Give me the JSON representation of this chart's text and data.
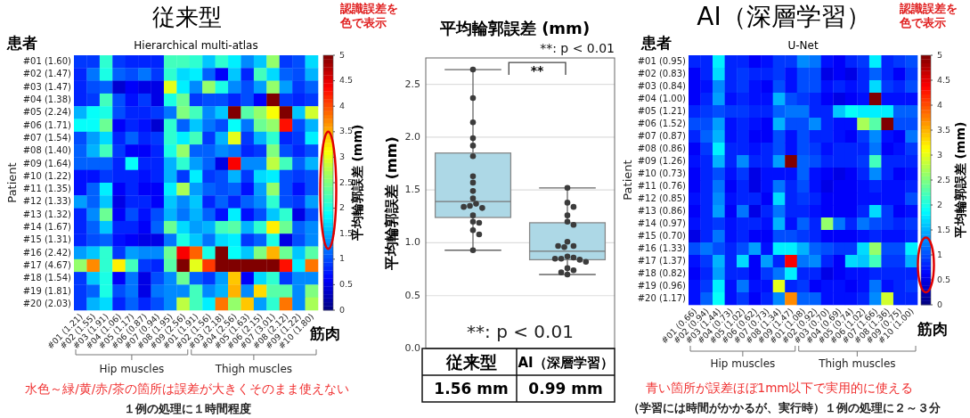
{
  "chart_data": [
    {
      "type": "heatmap",
      "title": "従来型",
      "subtitle": "Hierarchical multi-atlas",
      "ylabel": "Patient",
      "xlabel": "筋肉",
      "clabel": "平均輪郭誤差 (mm)",
      "categories": [
        "#01 (1.21)",
        "#02 (1.55)",
        "#03 (1.91)",
        "#04 (1.06)",
        "#05 (1.17)",
        "#06 (0.87)",
        "#07 (0.94)",
        "#08 (1.95)",
        "#09 (2.56)",
        "#01 (1.91)",
        "#02 (1.56)",
        "#03 (2.18)",
        "#04 (2.56)",
        "#05 (1.63)",
        "#06 (2.15)",
        "#07 (3.01)",
        "#08 (2.12)",
        "#09 (1.22)",
        "#10 (1.80)"
      ],
      "y_categories": [
        "#01 (1.60)",
        "#02 (1.47)",
        "#03 (1.47)",
        "#04 (1.38)",
        "#05 (2.24)",
        "#06 (1.71)",
        "#07 (1.54)",
        "#08 (1.40)",
        "#09 (1.64)",
        "#10 (1.22)",
        "#11 (1.35)",
        "#12 (1.33)",
        "#13 (1.32)",
        "#14 (1.67)",
        "#15 (1.31)",
        "#16 (2.42)",
        "#17 (4.67)",
        "#18 (1.54)",
        "#19 (1.81)",
        "#20 (2.03)"
      ],
      "cells": [
        [
          0.9,
          0.9,
          2.1,
          0.9,
          0.8,
          0.8,
          0.8,
          2.2,
          2.2,
          2.1,
          1.6,
          2.1,
          1.8,
          1.3,
          1.6,
          2.6,
          0.9,
          1.0,
          1.7
        ],
        [
          0.8,
          1.2,
          2.0,
          1.1,
          1.0,
          1.2,
          0.9,
          2.1,
          1.7,
          1.8,
          1.1,
          0.6,
          1.6,
          0.8,
          2.2,
          1.7,
          1.1,
          1.0,
          1.5
        ],
        [
          0.8,
          1.0,
          1.1,
          0.4,
          0.6,
          0.5,
          0.5,
          3.0,
          1.8,
          1.3,
          2.6,
          2.0,
          1.3,
          1.0,
          1.4,
          2.6,
          1.4,
          0.9,
          1.1
        ],
        [
          0.8,
          0.9,
          2.2,
          1.0,
          0.7,
          0.9,
          0.5,
          2.0,
          2.4,
          0.9,
          1.0,
          1.0,
          0.8,
          1.0,
          0.6,
          5.0,
          0.9,
          0.8,
          0.9
        ],
        [
          1.5,
          1.9,
          2.0,
          1.0,
          0.8,
          0.8,
          0.9,
          1.2,
          2.5,
          2.2,
          1.3,
          1.6,
          5.0,
          2.3,
          2.6,
          3.1,
          5.0,
          1.6,
          2.9
        ],
        [
          1.9,
          1.9,
          2.4,
          0.6,
          0.8,
          0.7,
          0.4,
          2.1,
          1.1,
          1.6,
          1.2,
          1.0,
          1.9,
          1.2,
          2.4,
          2.6,
          4.3,
          1.0,
          1.5
        ],
        [
          1.0,
          1.4,
          1.7,
          0.8,
          1.1,
          0.8,
          0.9,
          2.1,
          1.8,
          2.2,
          0.9,
          1.5,
          3.0,
          0.9,
          1.5,
          2.1,
          0.8,
          0.9,
          1.8
        ],
        [
          1.1,
          1.5,
          2.2,
          0.9,
          0.6,
          0.6,
          0.8,
          2.0,
          2.6,
          1.1,
          1.1,
          1.3,
          1.2,
          0.8,
          0.9,
          2.5,
          1.0,
          0.8,
          1.0
        ],
        [
          1.1,
          1.1,
          1.1,
          0.8,
          1.9,
          0.8,
          0.8,
          1.5,
          2.1,
          1.4,
          1.1,
          0.5,
          4.4,
          1.3,
          1.3,
          2.8,
          2.2,
          1.1,
          1.5
        ],
        [
          0.7,
          0.7,
          0.9,
          0.8,
          0.8,
          0.7,
          0.8,
          1.5,
          0.9,
          1.8,
          0.9,
          1.0,
          1.5,
          0.9,
          1.7,
          1.8,
          1.0,
          0.9,
          1.0
        ],
        [
          0.7,
          1.1,
          1.8,
          0.6,
          0.8,
          0.6,
          0.6,
          1.8,
          2.7,
          1.4,
          1.1,
          1.0,
          1.1,
          0.7,
          1.4,
          2.6,
          1.0,
          0.7,
          1.0
        ],
        [
          1.4,
          1.1,
          1.6,
          0.5,
          0.8,
          0.8,
          0.6,
          1.6,
          1.3,
          1.6,
          0.8,
          1.1,
          0.8,
          1.1,
          1.3,
          2.1,
          1.0,
          0.9,
          1.4
        ],
        [
          0.8,
          1.3,
          2.4,
          0.6,
          1.0,
          0.7,
          1.0,
          1.5,
          1.2,
          1.5,
          1.1,
          0.7,
          1.8,
          0.7,
          1.0,
          1.6,
          2.1,
          0.5,
          1.0
        ],
        [
          0.8,
          1.1,
          1.6,
          0.8,
          0.8,
          0.6,
          1.1,
          2.4,
          1.7,
          1.4,
          1.5,
          2.2,
          2.3,
          1.5,
          2.1,
          3.2,
          2.4,
          1.1,
          1.3
        ],
        [
          0.8,
          1.0,
          1.1,
          0.7,
          0.6,
          0.5,
          0.5,
          1.2,
          2.0,
          1.6,
          1.2,
          1.7,
          1.8,
          0.9,
          1.1,
          2.0,
          0.5,
          1.0,
          1.3
        ],
        [
          1.4,
          1.6,
          2.1,
          0.9,
          1.4,
          1.3,
          1.3,
          2.4,
          4.4,
          3.9,
          2.0,
          5.0,
          1.9,
          1.6,
          2.5,
          3.5,
          2.4,
          1.6,
          2.3
        ],
        [
          2.6,
          3.7,
          2.1,
          3.2,
          2.2,
          0.9,
          0.8,
          2.3,
          5.0,
          3.0,
          4.1,
          5.0,
          5.0,
          5.0,
          5.0,
          5.0,
          4.3,
          1.8,
          3.8
        ],
        [
          0.9,
          1.6,
          2.0,
          0.6,
          1.2,
          0.5,
          1.0,
          1.3,
          2.4,
          1.1,
          0.9,
          1.4,
          3.4,
          0.6,
          1.7,
          2.1,
          0.9,
          1.3,
          1.3
        ],
        [
          0.9,
          1.1,
          2.0,
          1.0,
          1.2,
          0.5,
          1.2,
          1.3,
          1.3,
          2.2,
          1.3,
          1.5,
          3.5,
          1.3,
          3.3,
          2.3,
          2.3,
          1.3,
          2.5
        ],
        [
          0.9,
          1.5,
          1.7,
          0.8,
          1.1,
          0.8,
          1.0,
          1.3,
          2.8,
          2.2,
          1.8,
          3.8,
          2.6,
          3.4,
          1.4,
          2.1,
          3.8,
          1.3,
          2.7
        ]
      ],
      "clim": [
        0,
        5
      ],
      "cticks": [
        0,
        0.5,
        1,
        1.5,
        2,
        2.5,
        3,
        3.5,
        4,
        4.5,
        5
      ],
      "annotations": [
        "患者",
        "認識誤差を色で表示",
        "Hip muscles",
        "Thigh muscles",
        "水色～緑/黄/赤/茶の箇所は誤差が大きくそのまま使えない",
        "１例の処理に１時間程度"
      ]
    },
    {
      "type": "box",
      "title": "平均輪郭誤差 (mm)",
      "ylabel": "平均輪郭誤差 (mm)",
      "categories": [
        "従来型",
        "AI（深層学習）"
      ],
      "ylim": [
        0,
        2.75
      ],
      "yticks": [
        {
          "value": 0,
          "label": "0.0"
        },
        {
          "value": 0.5,
          "label": "0.5"
        },
        {
          "value": 1,
          "label": "1.0"
        },
        {
          "value": 1.5,
          "label": "1.5"
        },
        {
          "value": 2,
          "label": "2.0"
        },
        {
          "value": 2.5,
          "label": "2.5"
        }
      ],
      "grid": "y",
      "series": [
        {
          "type": "box",
          "color": "#add8e6",
          "boxes": [
            {
              "low": 0.93,
              "q1": 1.24,
              "median": 1.39,
              "q3": 1.85,
              "high": 2.64
            },
            {
              "low": 0.7,
              "q1": 0.84,
              "median": 0.92,
              "q3": 1.19,
              "high": 1.52
            }
          ]
        },
        {
          "type": "scatter",
          "color": "#3c3c3c",
          "x": [
            "従来型",
            "従来型",
            "従来型",
            "従来型",
            "従来型",
            "従来型",
            "従来型",
            "従来型",
            "従来型",
            "従来型",
            "従来型",
            "従来型",
            "従来型",
            "従来型",
            "従来型",
            "従来型",
            "従来型",
            "従来型",
            "従来型",
            "従来型",
            "AI（深層学習）",
            "AI（深層学習）",
            "AI（深層学習）",
            "AI（深層学習）",
            "AI（深層学習）",
            "AI（深層学習）",
            "AI（深層学習）",
            "AI（深層学習）",
            "AI（深層学習）",
            "AI（深層学習）",
            "AI（深層学習）",
            "AI（深層学習）",
            "AI（深層学習）",
            "AI（深層学習）",
            "AI（深層学習）",
            "AI（深層学習）",
            "AI（深層学習）",
            "AI（深層学習）",
            "AI（深層学習）",
            "AI（深層学習）"
          ],
          "values": [
            2.64,
            2.37,
            2.14,
            1.99,
            1.92,
            1.82,
            1.63,
            1.57,
            1.49,
            1.42,
            1.37,
            1.35,
            1.33,
            1.34,
            1.26,
            1.2,
            1.19,
            1.12,
            1.08,
            0.93,
            1.52,
            1.38,
            1.34,
            1.26,
            1.2,
            1.17,
            1.01,
            0.97,
            0.96,
            0.97,
            0.87,
            0.86,
            0.85,
            0.84,
            0.85,
            0.82,
            0.76,
            0.74,
            0.72,
            0.7
          ]
        }
      ],
      "annotations": [
        "**",
        "**: p < 0.01",
        "**: p < 0.01",
        "1.56 mm",
        "0.99 mm"
      ]
    },
    {
      "type": "heatmap",
      "title": "AI（深層学習）",
      "subtitle": "U-Net",
      "ylabel": "Patient",
      "xlabel": "筋肉",
      "clabel": "平均輪郭誤差 (mm)",
      "categories": [
        "#01 (0.66)",
        "#02 (0.94)",
        "#03 (1.44)",
        "#04 (0.73)",
        "#05 (1.02)",
        "#06 (0.62)",
        "#07 (0.73)",
        "#08 (1.34)",
        "#09 (1.47)",
        "#01 (1.08)",
        "#02 (0.92)",
        "#03 (0.70)",
        "#04 (0.69)",
        "#05 (0.74)",
        "#06 (1.02)",
        "#07 (1.66)",
        "#08 (1.36)",
        "#09 (0.75)",
        "#10 (1.00)"
      ],
      "y_categories": [
        "#01 (0.95)",
        "#02 (0.83)",
        "#03 (0.84)",
        "#04 (1.00)",
        "#05 (1.21)",
        "#06 (1.52)",
        "#07 (0.87)",
        "#08 (0.86)",
        "#09 (1.26)",
        "#10 (0.73)",
        "#11 (0.76)",
        "#12 (0.85)",
        "#13 (0.86)",
        "#14 (0.97)",
        "#15 (0.70)",
        "#16 (1.33)",
        "#17 (1.37)",
        "#18 (0.82)",
        "#19 (0.96)",
        "#20 (1.17)"
      ],
      "cells": [
        [
          0.8,
          0.8,
          1.8,
          0.8,
          0.8,
          0.6,
          0.7,
          0.9,
          0.9,
          1.3,
          1.2,
          0.7,
          0.6,
          0.8,
          0.9,
          1.8,
          0.8,
          0.9,
          1.0
        ],
        [
          0.6,
          0.8,
          1.7,
          0.8,
          0.9,
          0.8,
          0.8,
          0.9,
          0.7,
          1.0,
          1.0,
          0.5,
          0.6,
          0.5,
          0.8,
          1.1,
          0.8,
          0.6,
          0.9
        ],
        [
          0.6,
          0.7,
          1.3,
          0.8,
          0.9,
          0.7,
          0.6,
          1.0,
          0.7,
          1.0,
          1.0,
          0.7,
          0.8,
          0.7,
          0.8,
          1.7,
          0.9,
          0.8,
          1.0
        ],
        [
          0.6,
          0.8,
          1.4,
          0.7,
          0.8,
          0.7,
          0.7,
          1.5,
          1.0,
          0.9,
          0.8,
          0.6,
          0.5,
          0.6,
          0.7,
          5.0,
          0.7,
          0.7,
          0.7
        ],
        [
          0.8,
          0.9,
          1.0,
          0.9,
          0.9,
          0.8,
          0.8,
          1.1,
          1.2,
          1.2,
          0.8,
          0.8,
          1.6,
          1.9,
          1.8,
          1.8,
          1.8,
          1.1,
          1.1
        ],
        [
          1.0,
          1.0,
          1.4,
          0.7,
          0.8,
          0.7,
          0.6,
          1.5,
          1.0,
          1.0,
          1.3,
          0.8,
          0.7,
          0.7,
          2.7,
          2.3,
          5.0,
          1.0,
          1.0
        ],
        [
          0.8,
          1.1,
          1.5,
          0.7,
          0.8,
          0.6,
          0.6,
          1.0,
          0.7,
          1.0,
          0.8,
          0.8,
          0.7,
          0.6,
          0.9,
          1.3,
          0.7,
          0.6,
          1.2
        ],
        [
          0.6,
          0.9,
          1.8,
          0.8,
          0.8,
          0.7,
          0.8,
          1.0,
          0.7,
          1.0,
          0.9,
          0.7,
          0.8,
          0.8,
          0.8,
          1.2,
          0.6,
          0.7,
          0.9
        ],
        [
          0.7,
          0.8,
          1.5,
          0.8,
          1.3,
          0.8,
          0.8,
          1.4,
          5.0,
          1.1,
          1.0,
          0.8,
          0.8,
          0.8,
          0.9,
          2.2,
          0.8,
          0.8,
          0.8
        ],
        [
          0.6,
          0.8,
          1.0,
          0.7,
          0.9,
          0.5,
          0.7,
          0.7,
          0.7,
          1.1,
          0.7,
          0.6,
          0.5,
          0.6,
          0.8,
          1.3,
          0.8,
          0.6,
          0.7
        ],
        [
          0.6,
          0.8,
          1.2,
          0.6,
          0.8,
          0.5,
          0.7,
          1.2,
          0.8,
          1.0,
          0.7,
          0.5,
          0.6,
          0.6,
          0.7,
          0.8,
          0.7,
          0.7,
          0.8
        ],
        [
          0.7,
          0.8,
          1.3,
          0.7,
          0.8,
          0.8,
          0.6,
          1.7,
          0.8,
          0.9,
          0.8,
          0.6,
          0.6,
          0.6,
          0.7,
          0.7,
          0.7,
          0.7,
          1.0
        ],
        [
          0.6,
          0.8,
          1.4,
          0.6,
          1.2,
          0.5,
          0.8,
          1.2,
          0.8,
          0.8,
          0.7,
          0.6,
          0.6,
          0.6,
          0.8,
          1.7,
          0.9,
          0.6,
          0.7
        ],
        [
          0.7,
          0.8,
          0.9,
          0.7,
          0.8,
          0.8,
          0.7,
          1.5,
          0.7,
          1.1,
          0.8,
          2.6,
          1.2,
          0.8,
          1.2,
          1.0,
          0.9,
          0.8,
          0.9
        ],
        [
          0.5,
          0.8,
          1.2,
          0.7,
          0.8,
          0.6,
          0.6,
          1.0,
          1.0,
          0.9,
          0.8,
          0.6,
          0.6,
          0.6,
          0.7,
          0.8,
          0.7,
          0.7,
          0.8
        ],
        [
          1.0,
          1.2,
          1.0,
          0.8,
          1.0,
          1.4,
          0.7,
          1.8,
          1.8,
          1.5,
          1.1,
          1.0,
          0.9,
          0.9,
          1.7,
          2.6,
          1.0,
          1.0,
          1.8
        ],
        [
          0.7,
          0.9,
          1.5,
          0.8,
          1.7,
          0.6,
          1.4,
          0.8,
          4.4,
          1.2,
          1.3,
          0.8,
          0.6,
          1.7,
          1.6,
          2.2,
          0.9,
          0.9,
          1.5
        ],
        [
          0.6,
          0.8,
          1.4,
          0.8,
          0.8,
          0.6,
          0.9,
          1.2,
          1.8,
          0.8,
          0.8,
          0.5,
          0.6,
          0.7,
          0.7,
          0.8,
          0.8,
          0.8,
          0.8
        ],
        [
          0.7,
          0.9,
          1.8,
          0.7,
          1.2,
          0.7,
          0.7,
          3.0,
          0.8,
          0.9,
          0.6,
          0.7,
          0.7,
          0.6,
          0.7,
          1.2,
          0.7,
          0.8,
          0.9
        ],
        [
          0.7,
          1.1,
          1.9,
          0.7,
          0.9,
          0.6,
          0.8,
          1.3,
          3.7,
          1.1,
          1.1,
          0.7,
          0.7,
          0.7,
          0.8,
          1.3,
          2.9,
          0.8,
          0.8
        ]
      ],
      "clim": [
        0,
        5
      ],
      "cticks": [
        0,
        0.5,
        1,
        1.5,
        2,
        2.5,
        3,
        3.5,
        4,
        4.5,
        5
      ],
      "annotations": [
        "患者",
        "認識誤差を色で表示",
        "Hip muscles",
        "Thigh muscles",
        "青い箇所が誤差ほぼ1mm以下で実用的に使える",
        "（学習には時間がかかるが、実行時）１例の処理に２～３分"
      ]
    }
  ]
}
